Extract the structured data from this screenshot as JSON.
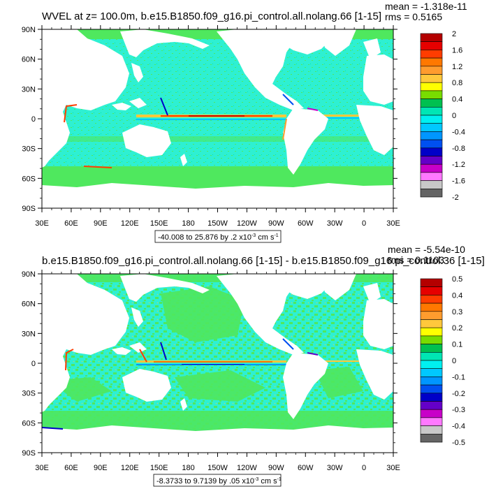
{
  "chart_data": [
    {
      "type": "heatmap",
      "title": "WVEL at z= 100.0m, b.e15.B1850.f09_g16.pi_control.all.nolang.66 [1-15]",
      "stats": {
        "mean": "mean = -1.318e-11",
        "rms": "rms = 0.5165"
      },
      "x_ticks": [
        "30E",
        "60E",
        "90E",
        "120E",
        "150E",
        "180",
        "150W",
        "120W",
        "90W",
        "60W",
        "30W",
        "0",
        "30E"
      ],
      "y_ticks": [
        "90N",
        "60N",
        "30N",
        "0",
        "30S",
        "60S",
        "90S"
      ],
      "x_range": [
        30,
        390
      ],
      "y_range": [
        -90,
        90
      ],
      "range_label": {
        "text": "-40.008 to 25.876 by .2 x10",
        "exp": "-3",
        "unit": " cm s",
        "unit_exp": "-1"
      },
      "colorbar": {
        "labels": [
          "2",
          "1.6",
          "1.2",
          "0.8",
          "0.4",
          "0",
          "-0.4",
          "-0.8",
          "-1.2",
          "-1.6",
          "-2"
        ],
        "colors": [
          "#b40000",
          "#e60000",
          "#ff3c00",
          "#ff7800",
          "#ff9c2e",
          "#ffc83c",
          "#ffff00",
          "#78dc00",
          "#00c050",
          "#00e6b4",
          "#00f0f0",
          "#00c8ff",
          "#0096ff",
          "#0050f0",
          "#0000c8",
          "#6400c8",
          "#c800c8",
          "#ff78ff",
          "#c8c8c8",
          "#646464"
        ]
      }
    },
    {
      "type": "heatmap",
      "title": "b.e15.B1850.f09_g16.pi_control.all.nolang.66 [1-15] - b.e15.B1850.f09_g16.pi_control.36 [1-15]",
      "stats": {
        "mean": "mean = -5.54e-10",
        "rms": "rms = 0.1103"
      },
      "x_ticks": [
        "30E",
        "60E",
        "90E",
        "120E",
        "150E",
        "180",
        "150W",
        "120W",
        "90W",
        "60W",
        "30W",
        "0",
        "30E"
      ],
      "y_ticks": [
        "90N",
        "60N",
        "30N",
        "0",
        "30S",
        "60S",
        "90S"
      ],
      "x_range": [
        30,
        390
      ],
      "y_range": [
        -90,
        90
      ],
      "range_label": {
        "text": "-8.3733 to 9.7139 by .05 x10",
        "exp": "-3",
        "unit": " cm s",
        "unit_exp": "-1"
      },
      "colorbar": {
        "labels": [
          "0.5",
          "0.4",
          "0.3",
          "0.2",
          "0.1",
          "0",
          "-0.1",
          "-0.2",
          "-0.3",
          "-0.4",
          "-0.5"
        ],
        "colors": [
          "#b40000",
          "#e60000",
          "#ff3c00",
          "#ff7800",
          "#ff9c2e",
          "#ffc83c",
          "#ffff00",
          "#78dc00",
          "#00c050",
          "#00e6b4",
          "#00f0f0",
          "#00c8ff",
          "#0096ff",
          "#0050f0",
          "#0000c8",
          "#6400c8",
          "#c800c8",
          "#ff78ff",
          "#c8c8c8",
          "#646464"
        ]
      }
    }
  ],
  "colors": {
    "ocean_base": "#2ef0d2",
    "ocean_alt": "#4fe85e",
    "land": "#ffffff"
  }
}
